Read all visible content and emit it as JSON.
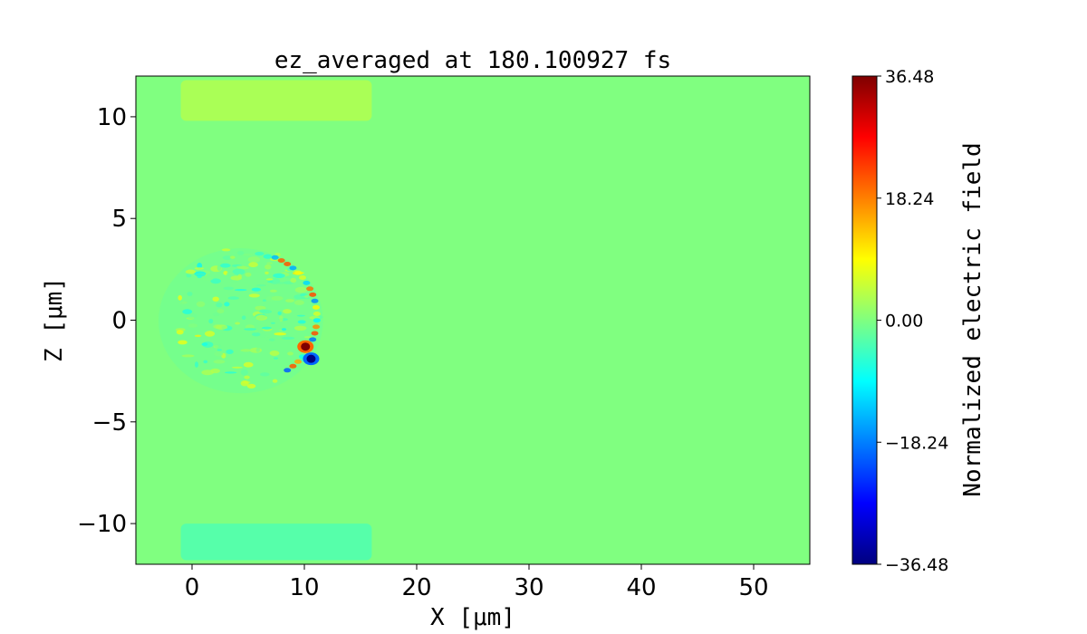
{
  "chart_data": {
    "type": "heatmap",
    "title": "ez_averaged at 180.100927 fs",
    "xlabel": "X [μm]",
    "ylabel": "Z [μm]",
    "xlim": [
      -5,
      55
    ],
    "ylim": [
      -12,
      12
    ],
    "x_ticks": [
      0,
      10,
      20,
      30,
      40,
      50
    ],
    "x_tick_labels": [
      "0",
      "10",
      "20",
      "30",
      "40",
      "50"
    ],
    "y_ticks": [
      -10,
      -5,
      0,
      5,
      10
    ],
    "y_tick_labels": [
      "−10",
      "−5",
      "0",
      "5",
      "10"
    ],
    "colorbar": {
      "label": "Normalized electric field",
      "min": -36.48,
      "max": 36.48,
      "ticks": [
        -36.48,
        -18.24,
        0.0,
        18.24,
        36.48
      ],
      "tick_labels": [
        "−36.48",
        "−18.24",
        "0.00",
        "18.24",
        "36.48"
      ],
      "colormap": "jet"
    },
    "background_value": 0.0,
    "features": [
      {
        "region": "upper strip",
        "x": [
          -1,
          16
        ],
        "z": [
          9.8,
          11.8
        ],
        "value": 3
      },
      {
        "region": "lower strip",
        "x": [
          -1,
          16
        ],
        "z": [
          -11.8,
          -10
        ],
        "value": -3
      },
      {
        "region": "plasma blob",
        "x": [
          -2.5,
          11.5
        ],
        "z": [
          -3.5,
          3.8
        ],
        "value_range": [
          -36.48,
          36.48
        ]
      },
      {
        "region": "peak positive",
        "x": 10.1,
        "z": -1.3,
        "value": 36.48
      },
      {
        "region": "peak negative",
        "x": 10.6,
        "z": -1.9,
        "value": -36.48
      }
    ]
  }
}
